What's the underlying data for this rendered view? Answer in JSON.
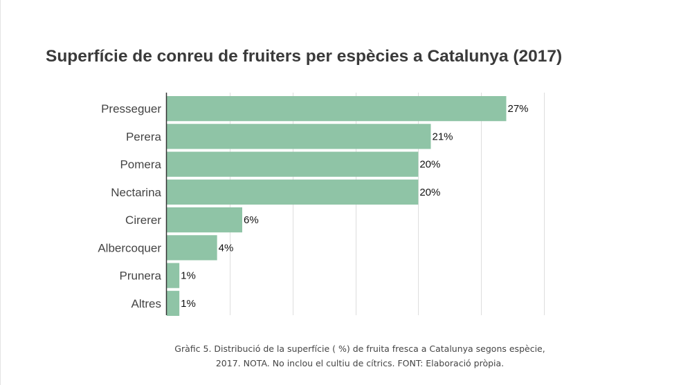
{
  "chart_data": {
    "type": "bar",
    "orientation": "horizontal",
    "title": "Superfície de conreu de fruiters per espècies a Catalunya (2017)",
    "categories": [
      "Presseguer",
      "Perera",
      "Pomera",
      "Nectarina",
      "Cirerer",
      "Albercoquer",
      "Prunera",
      "Altres"
    ],
    "values": [
      27,
      21,
      20,
      20,
      6,
      4,
      1,
      1
    ],
    "value_labels": [
      "27%",
      "21%",
      "20%",
      "20%",
      "6%",
      "4%",
      "1%",
      "1%"
    ],
    "unit": "%",
    "xlim": [
      0,
      30
    ],
    "grid": true,
    "xlabel": "",
    "ylabel": "",
    "bar_color": "#8fc4a6"
  },
  "caption": {
    "line1": "Gràfic 5. Distribució de la superfície ( %) de fruita fresca a Catalunya segons espècie,",
    "line2": "2017. NOTA. No inclou el cultiu de cítrics. FONT: Elaboració pròpia."
  }
}
